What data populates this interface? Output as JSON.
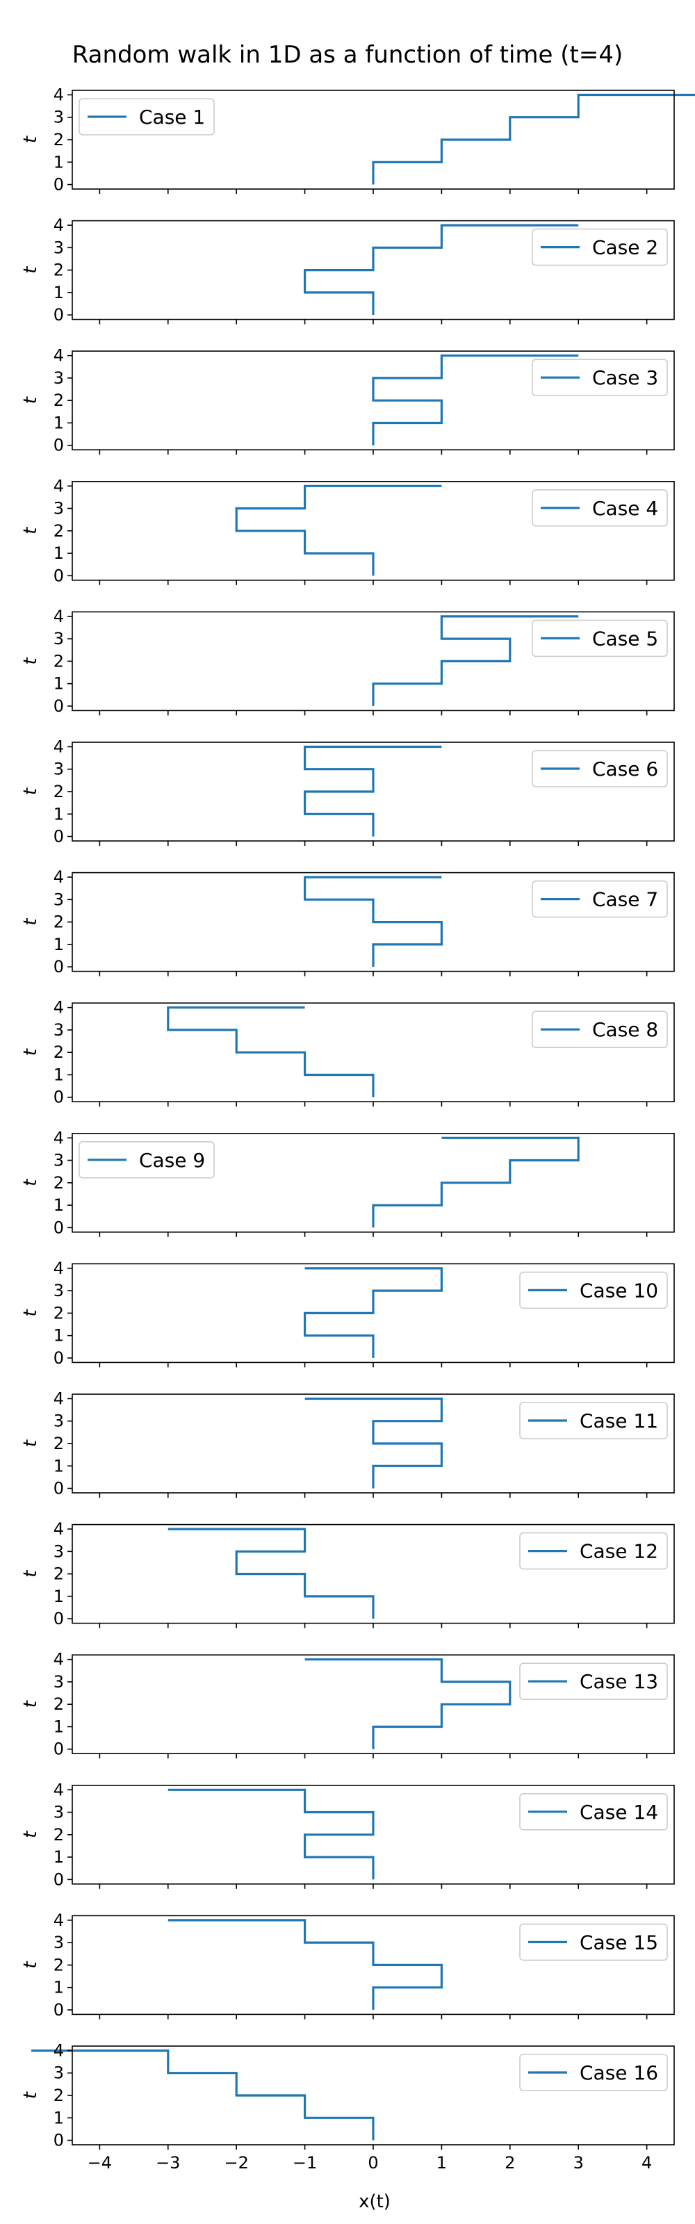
{
  "figure": {
    "title": "Random walk in 1D as a function of time (t=4)",
    "xlabel": "x(t)"
  },
  "chart_data": {
    "type": "line",
    "title": "Random walk in 1D as a function of time (t=4)",
    "xlabel": "x(t)",
    "ylabel": "t",
    "xlim": [
      -4.4,
      4.4
    ],
    "ylim": [
      -0.2,
      4.2
    ],
    "xticks": [
      -4,
      -3,
      -2,
      -1,
      0,
      1,
      2,
      3,
      4
    ],
    "yticks": [
      0,
      1,
      2,
      3,
      4
    ],
    "line_color": "#1f77b4",
    "drawstyle": "steps",
    "t": [
      0,
      1,
      2,
      3,
      4
    ],
    "series": [
      {
        "name": "Case 1",
        "x": [
          0,
          1,
          2,
          3,
          4
        ],
        "legend": "upper left"
      },
      {
        "name": "Case 2",
        "x": [
          0,
          -1,
          0,
          1,
          2
        ],
        "legend": "upper right"
      },
      {
        "name": "Case 3",
        "x": [
          0,
          1,
          0,
          1,
          2
        ],
        "legend": "upper right"
      },
      {
        "name": "Case 4",
        "x": [
          0,
          -1,
          -2,
          -1,
          0
        ],
        "legend": "upper right"
      },
      {
        "name": "Case 5",
        "x": [
          0,
          1,
          2,
          1,
          2
        ],
        "legend": "upper right"
      },
      {
        "name": "Case 6",
        "x": [
          0,
          -1,
          0,
          -1,
          0
        ],
        "legend": "upper right"
      },
      {
        "name": "Case 7",
        "x": [
          0,
          1,
          0,
          -1,
          0
        ],
        "legend": "upper right"
      },
      {
        "name": "Case 8",
        "x": [
          0,
          -1,
          -2,
          -3,
          -2
        ],
        "legend": "upper right"
      },
      {
        "name": "Case 9",
        "x": [
          0,
          1,
          2,
          3,
          2
        ],
        "legend": "upper left"
      },
      {
        "name": "Case 10",
        "x": [
          0,
          -1,
          0,
          1,
          0
        ],
        "legend": "upper right"
      },
      {
        "name": "Case 11",
        "x": [
          0,
          1,
          0,
          1,
          0
        ],
        "legend": "upper right"
      },
      {
        "name": "Case 12",
        "x": [
          0,
          -1,
          -2,
          -1,
          -2
        ],
        "legend": "upper right"
      },
      {
        "name": "Case 13",
        "x": [
          0,
          1,
          2,
          1,
          0
        ],
        "legend": "upper right"
      },
      {
        "name": "Case 14",
        "x": [
          0,
          -1,
          0,
          -1,
          -2
        ],
        "legend": "upper right"
      },
      {
        "name": "Case 15",
        "x": [
          0,
          1,
          0,
          -1,
          -2
        ],
        "legend": "upper right"
      },
      {
        "name": "Case 16",
        "x": [
          0,
          -1,
          -2,
          -3,
          -4
        ],
        "legend": "upper right"
      }
    ]
  }
}
